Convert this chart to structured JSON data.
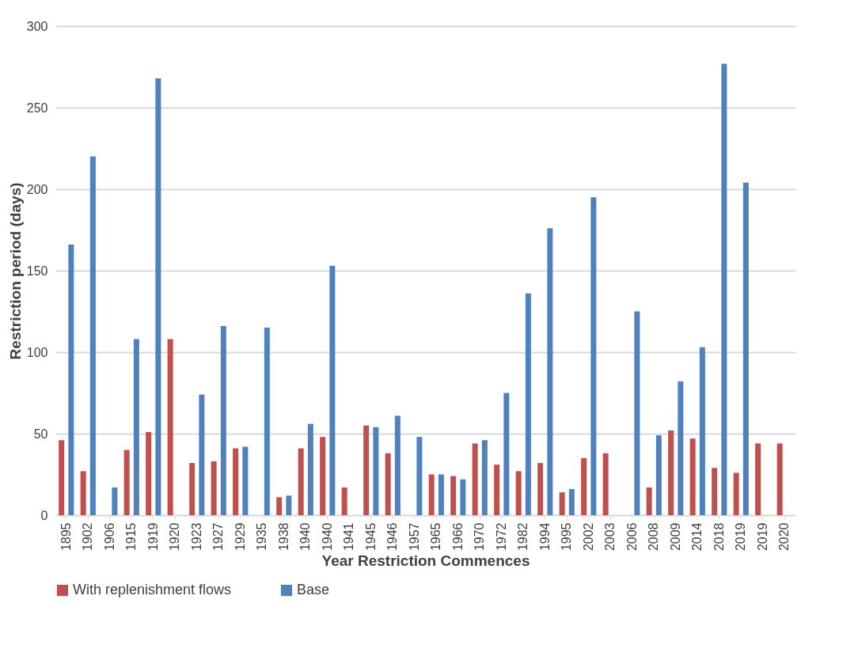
{
  "chart_data": {
    "type": "bar",
    "xlabel": "Year Restriction Commences",
    "ylabel": "Restriction period (days)",
    "categories": [
      "1895",
      "1902",
      "1906",
      "1915",
      "1919",
      "1920",
      "1923",
      "1927",
      "1929",
      "1935",
      "1938",
      "1940",
      "1940",
      "1941",
      "1945",
      "1946",
      "1957",
      "1965",
      "1966",
      "1970",
      "1972",
      "1982",
      "1994",
      "1995",
      "2002",
      "2003",
      "2006",
      "2008",
      "2009",
      "2014",
      "2018",
      "2019",
      "2019",
      "2020"
    ],
    "series": [
      {
        "name": "With replenishment flows",
        "color": "#c0504d",
        "values": [
          46,
          27,
          null,
          40,
          51,
          108,
          32,
          33,
          41,
          null,
          11,
          41,
          48,
          17,
          55,
          38,
          null,
          25,
          24,
          44,
          31,
          27,
          32,
          14,
          35,
          38,
          null,
          17,
          52,
          47,
          29,
          26,
          44,
          44
        ]
      },
      {
        "name": "Base",
        "color": "#4f81bd",
        "values": [
          166,
          220,
          17,
          108,
          268,
          null,
          74,
          116,
          42,
          115,
          12,
          56,
          153,
          null,
          54,
          61,
          48,
          25,
          22,
          46,
          75,
          136,
          176,
          16,
          195,
          null,
          125,
          49,
          82,
          103,
          277,
          204,
          null,
          null
        ]
      }
    ],
    "ylim": [
      0,
      300
    ],
    "yticks": [
      0,
      50,
      100,
      150,
      200,
      250,
      300
    ],
    "grid": "y",
    "legend": "bottom"
  }
}
